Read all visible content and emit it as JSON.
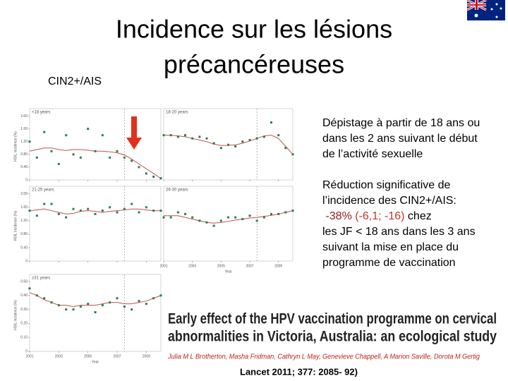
{
  "header": {
    "title_lines": [
      "Incidence sur les lésions",
      "précancéreuses"
    ],
    "subtitle": "CIN2+/AIS"
  },
  "figure": {
    "y_axis_title": "HSIL incidence (%)",
    "x_axis_title": "Year",
    "x": [
      2001,
      2001.5,
      2002,
      2002.5,
      2003,
      2003.5,
      2004,
      2004.5,
      2005,
      2005.5,
      2006,
      2006.5,
      2007,
      2007.5,
      2008,
      2008.5,
      2009,
      2009.5,
      2010
    ],
    "xlim": [
      2001,
      2010
    ],
    "xticks": [
      2001,
      2003,
      2005,
      2007,
      2009
    ],
    "marker_x": 2007.5,
    "point_color": "#2e7d4f",
    "trend_color": "#c0504d",
    "panels": [
      {
        "label": "<18 years",
        "ylim": [
          0,
          2.1
        ],
        "yticks": [
          0,
          {
            "value": 0.4,
            "label": "0.40"
          },
          {
            "value": 0.8,
            "label": "0.80"
          },
          {
            "value": 1.2,
            "label": "1.20"
          },
          {
            "value": 1.6,
            "label": "1.60"
          },
          {
            "value": 2,
            "label": "2.00"
          }
        ],
        "points": [
          1.2,
          0.7,
          1.5,
          0.9,
          0.5,
          1.4,
          0.8,
          0.7,
          1.6,
          0.9,
          1.4,
          0.7,
          0.9,
          0.7,
          0.6,
          0.4,
          0.2,
          0.1,
          0.05
        ],
        "trend": [
          0.9,
          0.95,
          1,
          1,
          0.95,
          0.92,
          0.95,
          0.95,
          0.93,
          0.9,
          0.9,
          0.88,
          0.85,
          0.78,
          0.65,
          0.5,
          0.35,
          0.2,
          0.05
        ]
      },
      {
        "label": "18-20 years",
        "ylim": [
          0,
          2.1
        ],
        "yticks": [],
        "points": [
          1.4,
          1.4,
          1.35,
          1.4,
          1.3,
          1.35,
          1.3,
          1.15,
          1,
          1.1,
          1.05,
          1.2,
          1.25,
          1.3,
          1.35,
          1.8,
          1.4,
          1,
          0.8
        ],
        "trend": [
          1.4,
          1.4,
          1.38,
          1.35,
          1.3,
          1.25,
          1.2,
          1.12,
          1.08,
          1.08,
          1.1,
          1.15,
          1.22,
          1.3,
          1.38,
          1.4,
          1.3,
          1.05,
          0.8
        ]
      },
      {
        "label": "21-25 years",
        "ylim": [
          0,
          2.1
        ],
        "yticks": [
          0,
          {
            "value": 0.4,
            "label": "0.40"
          },
          {
            "value": 0.8,
            "label": "0.80"
          },
          {
            "value": 1.2,
            "label": "1.20"
          },
          {
            "value": 1.6,
            "label": "1.60"
          },
          {
            "value": 2,
            "label": "2.00"
          }
        ],
        "points": [
          1.5,
          1.35,
          1.7,
          1.7,
          1.4,
          1.3,
          1.55,
          1.5,
          1.55,
          1.4,
          1.5,
          1.6,
          1.45,
          1.55,
          1.7,
          1.45,
          1.6,
          1.5,
          1.5
        ],
        "trend": [
          1.5,
          1.52,
          1.55,
          1.5,
          1.45,
          1.4,
          1.42,
          1.48,
          1.5,
          1.48,
          1.45,
          1.48,
          1.5,
          1.52,
          1.55,
          1.55,
          1.52,
          1.5,
          1.5
        ]
      },
      {
        "label": "26-30 years",
        "ylim": [
          0,
          2.1
        ],
        "yticks": [],
        "points": [
          1.3,
          1.3,
          1.45,
          1.4,
          1.3,
          1.2,
          1.15,
          1.05,
          1.2,
          1.3,
          1.3,
          1.25,
          1.35,
          1.2,
          1.3,
          1.4,
          1.4,
          1.45,
          1.5
        ],
        "trend": [
          1.35,
          1.35,
          1.35,
          1.3,
          1.25,
          1.2,
          1.15,
          1.13,
          1.15,
          1.18,
          1.22,
          1.25,
          1.28,
          1.3,
          1.33,
          1.36,
          1.4,
          1.45,
          1.5
        ]
      },
      {
        "label": "≥31 years",
        "ylim": [
          0,
          0.52
        ],
        "yticks": [
          0,
          {
            "value": 0.1,
            "label": "0.10"
          },
          {
            "value": 0.2,
            "label": "0.20"
          },
          {
            "value": 0.3,
            "label": "0.30"
          },
          {
            "value": 0.4,
            "label": "0.40"
          },
          {
            "value": 0.5,
            "label": "0.50"
          }
        ],
        "points": [
          0.45,
          0.4,
          0.38,
          0.35,
          0.33,
          0.3,
          0.3,
          0.32,
          0.34,
          0.28,
          0.33,
          0.35,
          0.38,
          0.32,
          0.3,
          0.36,
          0.34,
          0.38,
          0.4
        ],
        "trend": [
          0.42,
          0.4,
          0.37,
          0.35,
          0.33,
          0.33,
          0.32,
          0.33,
          0.33,
          0.33,
          0.34,
          0.35,
          0.35,
          0.34,
          0.34,
          0.35,
          0.36,
          0.38,
          0.4
        ]
      }
    ]
  },
  "text": {
    "screening": [
      "Dépistage à partir de 18 ans ou",
      "dans les 2 ans suivant le début",
      "de l’activité sexuelle"
    ],
    "reduction": [
      "Réduction significative de",
      "l’incidence des CIN2+/AIS:"
    ],
    "reduction_figures": [
      " -38%",
      " (-6,1; -16)",
      " chez"
    ],
    "reduction_rest": [
      "les JF < 18 ans dans les 3 ans",
      "suivant la mise en place du",
      "programme de vaccination"
    ]
  },
  "article": {
    "title_lines": [
      "Early effect of the HPV vaccination programme on cervical",
      "abnormalities in Victoria, Australia: an ecological study"
    ],
    "authors": "Julia M L Brotherton, Masha Fridman, Cathryn L May, Genevieve Chappell, A Marion Saville, Dorota M Gertig",
    "citation": "Lancet 2011; 377: 2085- 92)"
  }
}
